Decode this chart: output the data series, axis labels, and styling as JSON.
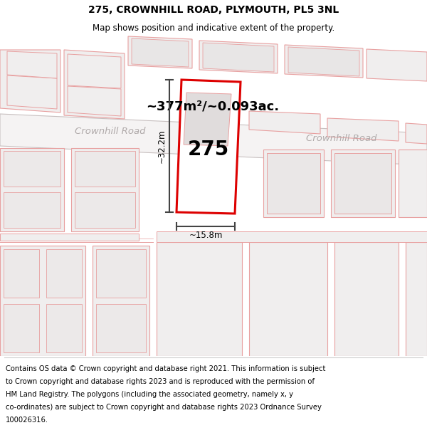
{
  "title_line1": "275, CROWNHILL ROAD, PLYMOUTH, PL5 3NL",
  "title_line2": "Map shows position and indicative extent of the property.",
  "area_text": "~377m²/~0.093ac.",
  "label_275": "275",
  "dim_vertical": "~32.2m",
  "dim_horizontal": "~15.8m",
  "road_label1": "Crownhill Road",
  "road_label2": "Crownhill Road",
  "bg_color": "#ffffff",
  "map_bg": "#ffffff",
  "road_fill": "#f0eeee",
  "road_edge": "#b0a8a8",
  "plot_fill": "#f0eeee",
  "plot_edge": "#e8a0a0",
  "red_plot_fill": "#ffffff",
  "red_plot_edge": "#dd0000",
  "dim_line_color": "#444444",
  "road_label_color": "#b0aaaa",
  "title_fontsize": 10,
  "subtitle_fontsize": 8.5,
  "footer_fontsize": 7.2,
  "footer_lines": [
    "Contains OS data © Crown copyright and database right 2021. This information is subject",
    "to Crown copyright and database rights 2023 and is reproduced with the permission of",
    "HM Land Registry. The polygons (including the associated geometry, namely x, y",
    "co-ordinates) are subject to Crown copyright and database rights 2023 Ordnance Survey",
    "100026316."
  ]
}
